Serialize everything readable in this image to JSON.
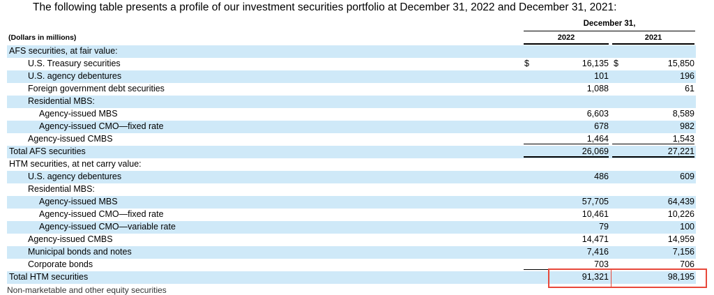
{
  "intro": "The following table presents a profile of our investment securities portfolio at December 31, 2022 and December 31, 2021:",
  "header": {
    "units": "(Dollars in millions)",
    "period": "December 31,",
    "col1": "2022",
    "col2": "2021"
  },
  "rows": [
    {
      "label": "AFS securities, at fair value:",
      "v1": "",
      "v2": ""
    },
    {
      "label": "U.S. Treasury securities",
      "dollar1": "$",
      "v1": "16,135",
      "dollar2": "$",
      "v2": "15,850"
    },
    {
      "label": "U.S. agency debentures",
      "v1": "101",
      "v2": "196"
    },
    {
      "label": "Foreign government debt securities",
      "v1": "1,088",
      "v2": "61"
    },
    {
      "label": "Residential MBS:",
      "v1": "",
      "v2": ""
    },
    {
      "label": "Agency-issued MBS",
      "v1": "6,603",
      "v2": "8,589"
    },
    {
      "label": "Agency-issued CMO—fixed rate",
      "v1": "678",
      "v2": "982"
    },
    {
      "label": "Agency-issued CMBS",
      "v1": "1,464",
      "v2": "1,543"
    },
    {
      "label": "Total AFS securities",
      "v1": "26,069",
      "v2": "27,221"
    },
    {
      "label": "HTM securities, at net carry value:",
      "v1": "",
      "v2": ""
    },
    {
      "label": "U.S. agency debentures",
      "v1": "486",
      "v2": "609"
    },
    {
      "label": "Residential MBS:",
      "v1": "",
      "v2": ""
    },
    {
      "label": "Agency-issued MBS",
      "v1": "57,705",
      "v2": "64,439"
    },
    {
      "label": "Agency-issued CMO—fixed rate",
      "v1": "10,461",
      "v2": "10,226"
    },
    {
      "label": "Agency-issued CMO—variable rate",
      "v1": "79",
      "v2": "100"
    },
    {
      "label": "Agency-issued CMBS",
      "v1": "14,471",
      "v2": "14,959"
    },
    {
      "label": "Municipal bonds and notes",
      "v1": "7,416",
      "v2": "7,156"
    },
    {
      "label": "Corporate bonds",
      "v1": "703",
      "v2": "706"
    },
    {
      "label": "Total HTM securities",
      "v1": "91,321",
      "v2": "98,195"
    }
  ],
  "trailing_text": "Non-marketable and other equity securities",
  "colors": {
    "row_shade": "#cfe9f8",
    "highlight": "#e8483a"
  }
}
